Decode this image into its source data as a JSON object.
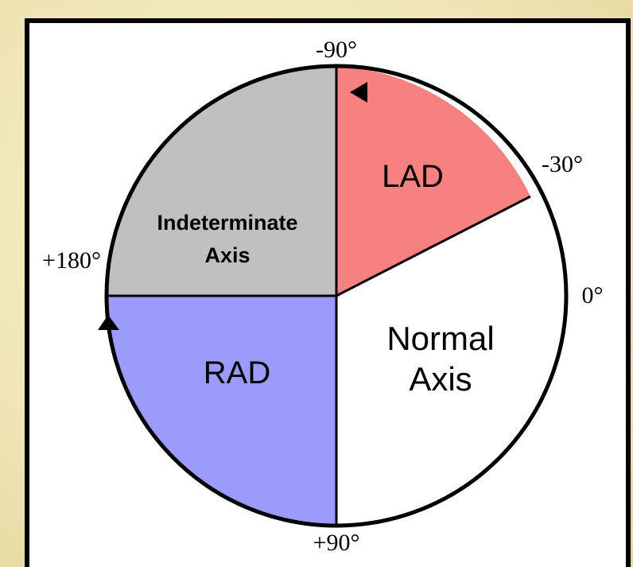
{
  "diagram": {
    "sectors": {
      "lad": {
        "label": "LAD",
        "color": "#f78080"
      },
      "normal": {
        "label_line1": "Normal",
        "label_line2": "Axis",
        "color": "#ffffff"
      },
      "rad": {
        "label": "RAD",
        "color": "#9b9bfb"
      },
      "indeterminate": {
        "label_line1": "Indeterminate",
        "label_line2": "Axis",
        "color": "#c0c0c0"
      }
    },
    "angle_labels": {
      "minus90": "-90°",
      "minus30": "-30°",
      "zero": "0°",
      "plus90": "+90°",
      "plus180": "+180°"
    },
    "border_color": "#000000"
  }
}
